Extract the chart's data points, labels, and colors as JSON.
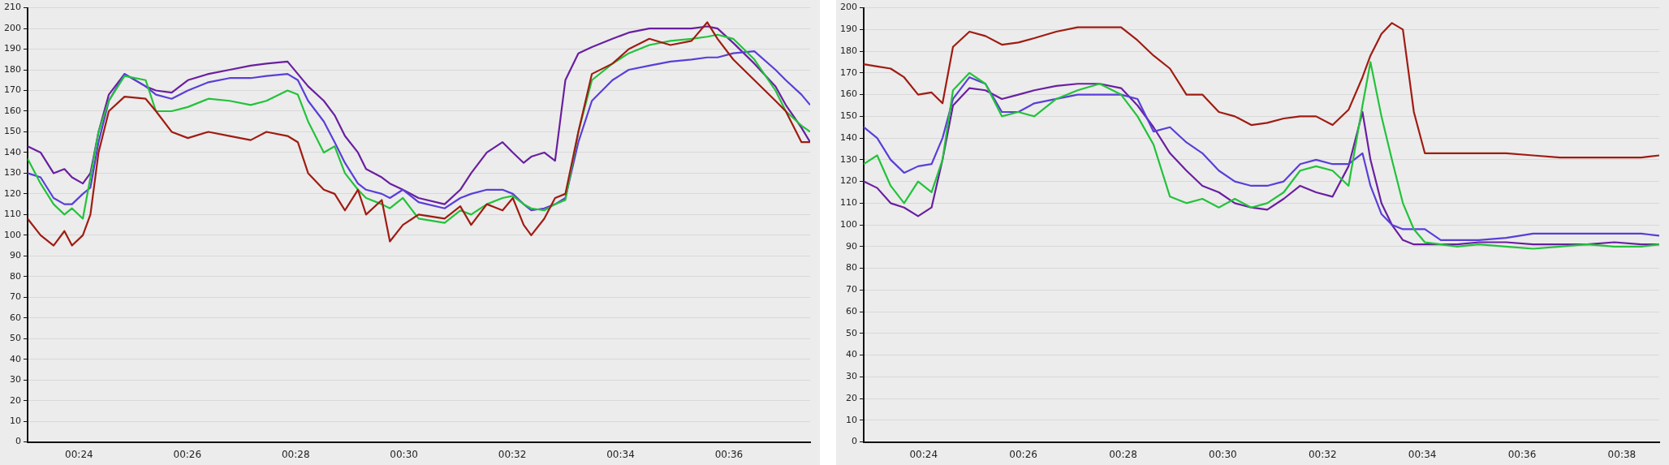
{
  "chart_data": [
    {
      "type": "line",
      "x": [
        23.05,
        23.29,
        23.53,
        23.73,
        23.87,
        24.07,
        24.21,
        24.36,
        24.55,
        24.84,
        25.23,
        25.42,
        25.71,
        26.01,
        26.39,
        26.78,
        27.17,
        27.46,
        27.85,
        28.04,
        28.23,
        28.52,
        28.72,
        28.91,
        29.15,
        29.3,
        29.59,
        29.74,
        29.98,
        30.27,
        30.75,
        31.04,
        31.24,
        31.53,
        31.82,
        32.01,
        32.21,
        32.35,
        32.59,
        32.79,
        32.98,
        33.22,
        33.47,
        33.85,
        34.15,
        34.53,
        34.92,
        35.31,
        35.6,
        35.79,
        36.08,
        36.47,
        36.86,
        37.05,
        37.34,
        37.5
      ],
      "series": [
        {
          "color": "#a01c12",
          "values": [
            108,
            100,
            95,
            102,
            95,
            100,
            110,
            140,
            160,
            167,
            166,
            160,
            150,
            147,
            150,
            148,
            146,
            150,
            148,
            145,
            130,
            122,
            120,
            112,
            122,
            110,
            117,
            97,
            105,
            110,
            108,
            114,
            105,
            115,
            112,
            118,
            105,
            100,
            108,
            118,
            120,
            150,
            178,
            183,
            190,
            195,
            192,
            194,
            203,
            195,
            185,
            175,
            165,
            160,
            145,
            145
          ]
        },
        {
          "color": "#22c33a",
          "values": [
            137,
            125,
            115,
            110,
            113,
            108,
            128,
            150,
            165,
            177,
            175,
            160,
            160,
            162,
            166,
            165,
            163,
            165,
            170,
            168,
            155,
            140,
            143,
            130,
            122,
            118,
            115,
            113,
            118,
            108,
            106,
            112,
            110,
            115,
            118,
            119,
            115,
            113,
            112,
            115,
            117,
            150,
            175,
            183,
            188,
            192,
            194,
            195,
            196,
            197,
            195,
            185,
            170,
            160,
            153,
            150
          ]
        },
        {
          "color": "#5a3fd8",
          "values": [
            130,
            128,
            118,
            115,
            115,
            120,
            123,
            145,
            165,
            178,
            172,
            168,
            166,
            170,
            174,
            176,
            176,
            177,
            178,
            175,
            165,
            155,
            145,
            135,
            125,
            122,
            120,
            118,
            122,
            116,
            113,
            118,
            120,
            122,
            122,
            120,
            115,
            112,
            113,
            115,
            118,
            145,
            165,
            175,
            180,
            182,
            184,
            185,
            186,
            186,
            188,
            189,
            180,
            175,
            168,
            163
          ]
        },
        {
          "color": "#6a1fa0",
          "values": [
            143,
            140,
            130,
            132,
            128,
            125,
            130,
            150,
            168,
            178,
            172,
            170,
            169,
            175,
            178,
            180,
            182,
            183,
            184,
            178,
            172,
            165,
            158,
            148,
            140,
            132,
            128,
            125,
            122,
            118,
            115,
            122,
            130,
            140,
            145,
            140,
            135,
            138,
            140,
            136,
            175,
            188,
            191,
            195,
            198,
            200,
            200,
            200,
            201,
            200,
            193,
            183,
            172,
            163,
            152,
            145
          ]
        }
      ],
      "xlim": [
        23.05,
        37.5
      ],
      "xticks": [
        {
          "value": 24,
          "label": "00:24"
        },
        {
          "value": 26,
          "label": "00:26"
        },
        {
          "value": 28,
          "label": "00:28"
        },
        {
          "value": 30,
          "label": "00:30"
        },
        {
          "value": 32,
          "label": "00:32"
        },
        {
          "value": 34,
          "label": "00:34"
        },
        {
          "value": 36,
          "label": "00:36"
        }
      ],
      "ylim": [
        0,
        210
      ],
      "yticks": [
        0,
        10,
        20,
        30,
        40,
        50,
        60,
        70,
        80,
        90,
        100,
        110,
        120,
        130,
        140,
        150,
        160,
        170,
        180,
        190,
        200,
        210
      ],
      "grid": "y",
      "legend": false,
      "marker": "none",
      "line_style": "solid"
    },
    {
      "type": "line",
      "x": [
        22.8,
        23.07,
        23.34,
        23.61,
        23.89,
        24.16,
        24.38,
        24.59,
        24.92,
        25.24,
        25.57,
        25.9,
        26.22,
        26.66,
        27.09,
        27.53,
        27.96,
        28.29,
        28.61,
        28.94,
        29.27,
        29.59,
        29.92,
        30.24,
        30.57,
        30.89,
        31.22,
        31.55,
        31.87,
        32.2,
        32.52,
        32.8,
        32.96,
        33.18,
        33.39,
        33.61,
        33.83,
        34.05,
        34.37,
        34.7,
        35.13,
        35.68,
        36.22,
        36.76,
        37.3,
        37.85,
        38.39,
        38.75
      ],
      "series": [
        {
          "color": "#a01c12",
          "values": [
            174,
            173,
            172,
            168,
            160,
            161,
            156,
            182,
            189,
            187,
            183,
            184,
            186,
            189,
            191,
            191,
            191,
            185,
            178,
            172,
            160,
            160,
            152,
            150,
            146,
            147,
            149,
            150,
            150,
            146,
            153,
            168,
            178,
            188,
            193,
            190,
            152,
            133,
            133,
            133,
            133,
            133,
            132,
            131,
            131,
            131,
            131,
            132
          ]
        },
        {
          "color": "#22c33a",
          "values": [
            128,
            132,
            118,
            110,
            120,
            115,
            130,
            162,
            170,
            165,
            150,
            152,
            150,
            158,
            162,
            165,
            160,
            150,
            137,
            113,
            110,
            112,
            108,
            112,
            108,
            110,
            115,
            125,
            127,
            125,
            118,
            155,
            175,
            150,
            130,
            110,
            98,
            92,
            91,
            90,
            91,
            90,
            89,
            90,
            91,
            90,
            90,
            91
          ]
        },
        {
          "color": "#5a3fd8",
          "values": [
            145,
            140,
            130,
            124,
            127,
            128,
            140,
            158,
            168,
            165,
            152,
            152,
            156,
            158,
            160,
            160,
            160,
            158,
            143,
            145,
            138,
            133,
            125,
            120,
            118,
            118,
            120,
            128,
            130,
            128,
            128,
            133,
            118,
            105,
            100,
            98,
            98,
            98,
            93,
            93,
            93,
            94,
            96,
            96,
            96,
            96,
            96,
            95
          ]
        },
        {
          "color": "#6a1fa0",
          "values": [
            120,
            117,
            110,
            108,
            104,
            108,
            130,
            155,
            163,
            162,
            158,
            160,
            162,
            164,
            165,
            165,
            163,
            155,
            145,
            133,
            125,
            118,
            115,
            110,
            108,
            107,
            112,
            118,
            115,
            113,
            127,
            152,
            130,
            110,
            100,
            93,
            91,
            91,
            91,
            91,
            92,
            92,
            91,
            91,
            91,
            92,
            91,
            91
          ]
        }
      ],
      "xlim": [
        22.8,
        38.75
      ],
      "xticks": [
        {
          "value": 24,
          "label": "00:24"
        },
        {
          "value": 26,
          "label": "00:26"
        },
        {
          "value": 28,
          "label": "00:28"
        },
        {
          "value": 30,
          "label": "00:30"
        },
        {
          "value": 32,
          "label": "00:32"
        },
        {
          "value": 34,
          "label": "00:34"
        },
        {
          "value": 36,
          "label": "00:36"
        },
        {
          "value": 38,
          "label": "00:38"
        }
      ],
      "ylim": [
        0,
        200
      ],
      "yticks": [
        0,
        10,
        20,
        30,
        40,
        50,
        60,
        70,
        80,
        90,
        100,
        110,
        120,
        130,
        140,
        150,
        160,
        170,
        180,
        190,
        200
      ],
      "grid": "y",
      "legend": false,
      "marker": "none",
      "line_style": "solid"
    }
  ]
}
